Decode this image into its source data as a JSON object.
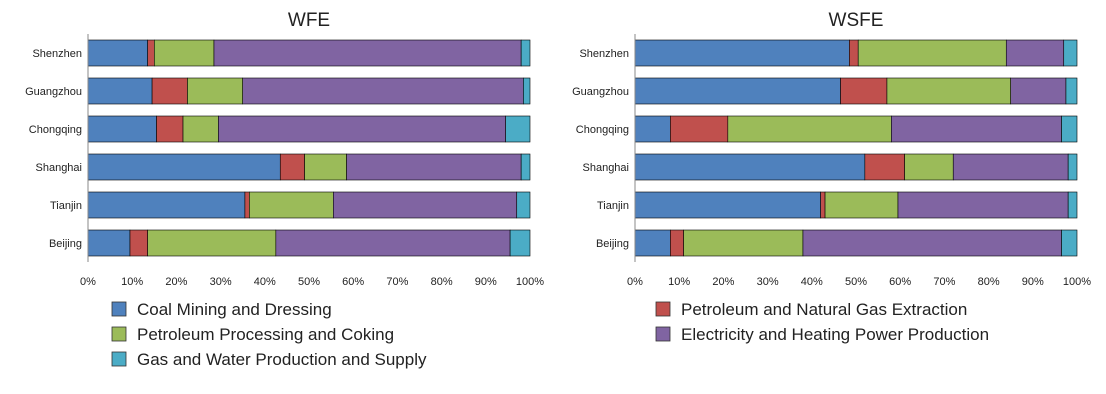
{
  "chart_data": [
    {
      "type": "bar",
      "orientation": "horizontal",
      "stacked": "percent",
      "title": "WFE",
      "categories": [
        "Shenzhen",
        "Guangzhou",
        "Chongqing",
        "Shanghai",
        "Tianjin",
        "Beijing"
      ],
      "xlim": [
        0,
        100
      ],
      "ticks": [
        "0%",
        "10%",
        "20%",
        "30%",
        "40%",
        "50%",
        "60%",
        "70%",
        "80%",
        "90%",
        "100%"
      ],
      "series": [
        {
          "name": "Coal Mining and Dressing",
          "color": "#4F81BD",
          "values": [
            13.5,
            14.5,
            15.5,
            43.5,
            35.5,
            9.5
          ]
        },
        {
          "name": "Petroleum and Natural Gas Extraction",
          "color": "#C0504D",
          "values": [
            1.5,
            8.0,
            6.0,
            5.5,
            1.0,
            4.0
          ]
        },
        {
          "name": "Petroleum Processing and Coking",
          "color": "#9BBB59",
          "values": [
            13.5,
            12.5,
            8.0,
            9.5,
            19.0,
            29.0
          ]
        },
        {
          "name": "Electricity and Heating Power Production",
          "color": "#8064A2",
          "values": [
            69.5,
            63.5,
            65.0,
            39.5,
            41.5,
            53.0
          ]
        },
        {
          "name": "Gas and Water Production and Supply",
          "color": "#4BACC6",
          "values": [
            2.0,
            1.5,
            5.5,
            2.0,
            3.0,
            4.5
          ]
        }
      ]
    },
    {
      "type": "bar",
      "orientation": "horizontal",
      "stacked": "percent",
      "title": "WSFE",
      "categories": [
        "Shenzhen",
        "Guangzhou",
        "Chongqing",
        "Shanghai",
        "Tianjin",
        "Beijing"
      ],
      "xlim": [
        0,
        100
      ],
      "ticks": [
        "0%",
        "10%",
        "20%",
        "30%",
        "40%",
        "50%",
        "60%",
        "70%",
        "80%",
        "90%",
        "100%"
      ],
      "series": [
        {
          "name": "Coal Mining and Dressing",
          "color": "#4F81BD",
          "values": [
            48.5,
            46.5,
            8.0,
            52.0,
            42.0,
            8.0
          ]
        },
        {
          "name": "Petroleum and Natural Gas Extraction",
          "color": "#C0504D",
          "values": [
            2.0,
            10.5,
            13.0,
            9.0,
            1.0,
            3.0
          ]
        },
        {
          "name": "Petroleum Processing and Coking",
          "color": "#9BBB59",
          "values": [
            33.5,
            28.0,
            37.0,
            11.0,
            16.5,
            27.0
          ]
        },
        {
          "name": "Electricity and Heating Power Production",
          "color": "#8064A2",
          "values": [
            13.0,
            12.5,
            38.5,
            26.0,
            38.5,
            58.5
          ]
        },
        {
          "name": "Gas and Water Production and Supply",
          "color": "#4BACC6",
          "values": [
            3.0,
            2.5,
            3.5,
            2.0,
            2.0,
            3.5
          ]
        }
      ]
    }
  ],
  "legend": [
    {
      "label": "Coal Mining and Dressing",
      "color": "#4F81BD"
    },
    {
      "label": "Petroleum and Natural Gas Extraction",
      "color": "#C0504D"
    },
    {
      "label": "Petroleum Processing and Coking",
      "color": "#9BBB59"
    },
    {
      "label": "Electricity and Heating Power Production",
      "color": "#8064A2"
    },
    {
      "label": "Gas and Water Production and Supply",
      "color": "#4BACC6"
    }
  ]
}
